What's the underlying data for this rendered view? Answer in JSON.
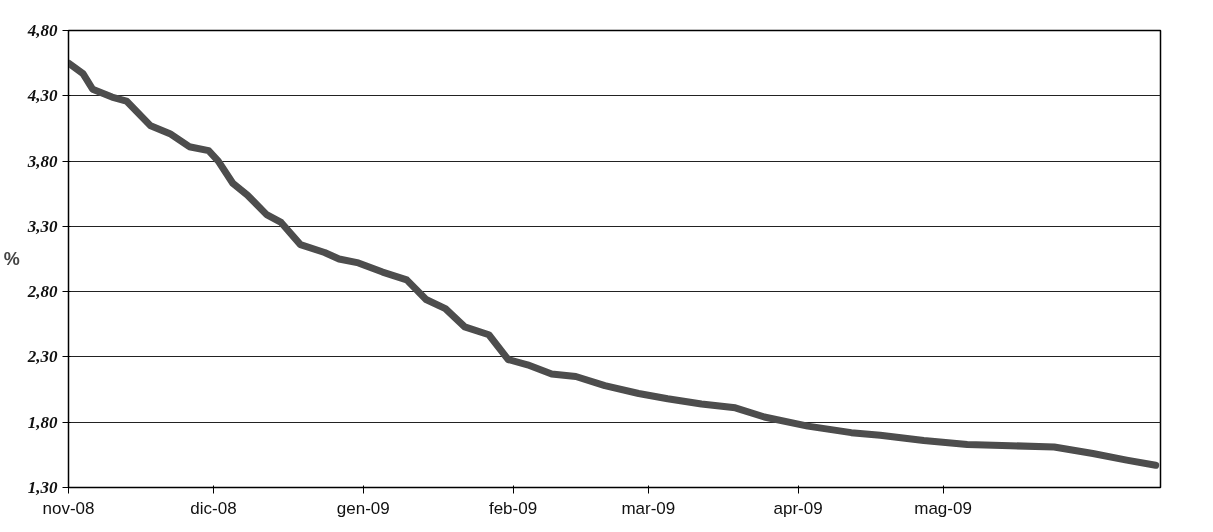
{
  "chart_data": {
    "type": "line",
    "ylabel": "%",
    "color": "#4d4d4d",
    "grid": "y",
    "marker": "none",
    "line_style": "solid",
    "x": [
      "2008-11-01",
      "2008-11-04",
      "2008-11-06",
      "2008-11-10",
      "2008-11-13",
      "2008-11-18",
      "2008-11-22",
      "2008-11-26",
      "2008-11-30",
      "2008-12-02",
      "2008-12-05",
      "2008-12-08",
      "2008-12-12",
      "2008-12-15",
      "2008-12-19",
      "2008-12-24",
      "2008-12-27",
      "2008-12-31",
      "2009-01-05",
      "2009-01-10",
      "2009-01-14",
      "2009-01-18",
      "2009-01-22",
      "2009-01-27",
      "2009-01-31",
      "2009-02-04",
      "2009-02-09",
      "2009-02-14",
      "2009-02-20",
      "2009-02-27",
      "2009-03-05",
      "2009-03-12",
      "2009-03-19",
      "2009-03-25",
      "2009-04-03",
      "2009-04-12",
      "2009-04-18",
      "2009-04-27",
      "2009-05-06",
      "2009-05-15",
      "2009-05-24",
      "2009-06-01",
      "2009-06-08",
      "2009-06-14"
    ],
    "values": [
      4.55,
      4.47,
      4.35,
      4.29,
      4.26,
      4.07,
      4.01,
      3.91,
      3.88,
      3.8,
      3.63,
      3.54,
      3.39,
      3.33,
      3.16,
      3.1,
      3.05,
      3.02,
      2.95,
      2.89,
      2.74,
      2.67,
      2.53,
      2.47,
      2.28,
      2.24,
      2.17,
      2.15,
      2.08,
      2.02,
      1.98,
      1.94,
      1.91,
      1.84,
      1.77,
      1.72,
      1.7,
      1.66,
      1.63,
      1.62,
      1.61,
      1.56,
      1.51,
      1.47
    ],
    "xlim": [
      "2008-11-01",
      "2009-06-15"
    ],
    "xticks": [
      {
        "value": "2008-11-01",
        "label": "nov-08"
      },
      {
        "value": "2008-12-01",
        "label": "dic-08"
      },
      {
        "value": "2009-01-01",
        "label": "gen-09"
      },
      {
        "value": "2009-02-01",
        "label": "feb-09"
      },
      {
        "value": "2009-03-01",
        "label": "mar-09"
      },
      {
        "value": "2009-04-01",
        "label": "apr-09"
      },
      {
        "value": "2009-05-01",
        "label": "mag-09"
      }
    ],
    "ylim": [
      1.3,
      4.8
    ],
    "yticks": [
      {
        "value": 1.3,
        "label": "1,30"
      },
      {
        "value": 1.8,
        "label": "1,80"
      },
      {
        "value": 2.3,
        "label": "2,30"
      },
      {
        "value": 2.8,
        "label": "2,80"
      },
      {
        "value": 3.3,
        "label": "3,30"
      },
      {
        "value": 3.8,
        "label": "3,80"
      },
      {
        "value": 4.3,
        "label": "4,30"
      },
      {
        "value": 4.8,
        "label": "4,80"
      }
    ]
  }
}
